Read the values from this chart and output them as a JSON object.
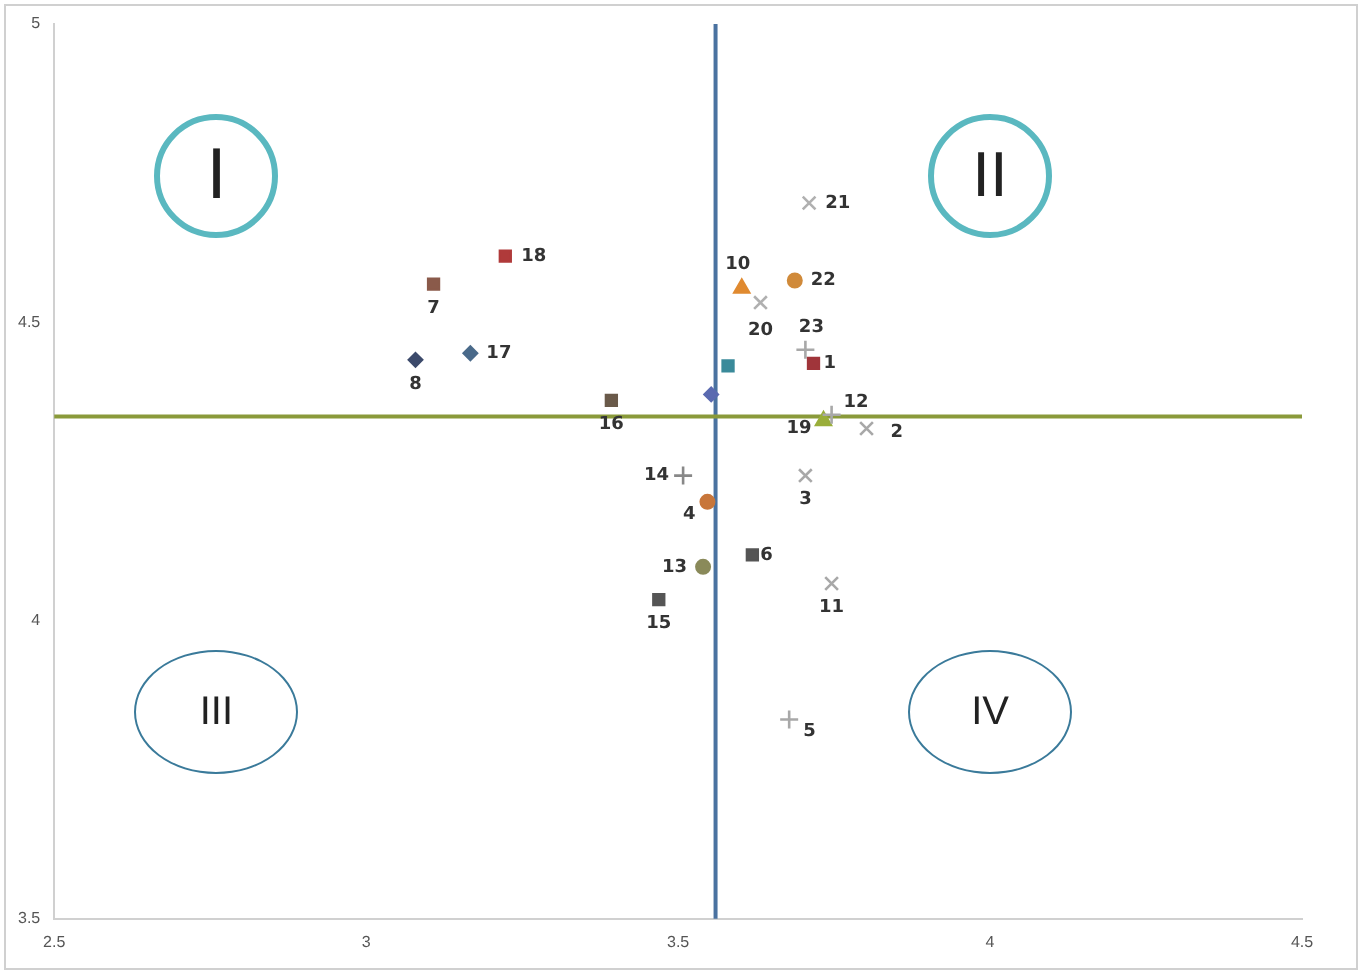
{
  "chart_data": {
    "type": "scatter",
    "xlim": [
      2.5,
      4.5
    ],
    "xticks": [
      2.5,
      3,
      3.5,
      4,
      4.5
    ],
    "ylim": [
      3.5,
      5
    ],
    "yticks": [
      3.5,
      4,
      4.5,
      5
    ],
    "grid": false,
    "series": [
      {
        "name": "1",
        "color": "#a0353a",
        "marker": "square",
        "x": [
          3.717
        ],
        "values": [
          4.431
        ]
      },
      {
        "name": "2",
        "color": "#a8a8a8",
        "marker": "x",
        "x": [
          3.802
        ],
        "values": [
          4.322
        ]
      },
      {
        "name": "3",
        "color": "#a8a8a8",
        "marker": "x",
        "x": [
          3.704
        ],
        "values": [
          4.243
        ]
      },
      {
        "name": "4",
        "color": "#c8763a",
        "marker": "circle",
        "x": [
          3.547
        ],
        "values": [
          4.199
        ]
      },
      {
        "name": "5",
        "color": "#a8a8a8",
        "marker": "cross",
        "x": [
          3.678
        ],
        "values": [
          3.834
        ]
      },
      {
        "name": "6",
        "color": "#555555",
        "marker": "square",
        "x": [
          3.619
        ],
        "values": [
          4.11
        ]
      },
      {
        "name": "7",
        "color": "#8a5a4a",
        "marker": "square",
        "x": [
          3.108
        ],
        "values": [
          4.564
        ]
      },
      {
        "name": "8",
        "color": "#3c4a6b",
        "marker": "diamond",
        "x": [
          3.079
        ],
        "values": [
          4.437
        ]
      },
      {
        "color": "#5a6ab0",
        "marker": "diamond",
        "x": [
          3.553
        ],
        "values": [
          4.379
        ]
      },
      {
        "name": "10",
        "color": "#e08a30",
        "marker": "triangle",
        "x": [
          3.602
        ],
        "values": [
          4.557
        ]
      },
      {
        "name": "11",
        "color": "#a8a8a8",
        "marker": "x",
        "x": [
          3.746
        ],
        "values": [
          4.062
        ]
      },
      {
        "name": "12",
        "color": "#a8a8a8",
        "marker": "cross",
        "x": [
          3.746
        ],
        "values": [
          4.345
        ]
      },
      {
        "name": "13",
        "color": "#8a8a5a",
        "marker": "circle",
        "x": [
          3.54
        ],
        "values": [
          4.09
        ]
      },
      {
        "name": "14",
        "color": "#888888",
        "marker": "cross",
        "x": [
          3.508
        ],
        "values": [
          4.243
        ]
      },
      {
        "name": "15",
        "color": "#555555",
        "marker": "square",
        "x": [
          3.469
        ],
        "values": [
          4.035
        ]
      },
      {
        "name": "16",
        "color": "#6a5a4a",
        "marker": "square",
        "x": [
          3.393
        ],
        "values": [
          4.369
        ]
      },
      {
        "name": "17",
        "color": "#4a6a8a",
        "marker": "diamond",
        "x": [
          3.167
        ],
        "values": [
          4.448
        ]
      },
      {
        "name": "18",
        "color": "#b03a3a",
        "marker": "square",
        "x": [
          3.223
        ],
        "values": [
          4.611
        ]
      },
      {
        "name": "19",
        "color": "#9aae3a",
        "marker": "triangle",
        "x": [
          3.733
        ],
        "values": [
          4.335
        ]
      },
      {
        "name": "20",
        "color": "#b0b0b0",
        "marker": "x",
        "x": [
          3.632
        ],
        "values": [
          4.533
        ]
      },
      {
        "name": "21",
        "color": "#b0b0b0",
        "marker": "x",
        "x": [
          3.71
        ],
        "values": [
          4.7
        ]
      },
      {
        "name": "22",
        "color": "#d08a3a",
        "marker": "circle",
        "x": [
          3.687
        ],
        "values": [
          4.57
        ]
      },
      {
        "name": "23",
        "color": "#a8a8a8",
        "marker": "cross",
        "x": [
          3.704
        ],
        "values": [
          4.454
        ]
      },
      {
        "color": "#3a8a9a",
        "marker": "square",
        "x": [
          3.58
        ],
        "values": [
          4.427
        ]
      }
    ],
    "ref_lines": [
      {
        "axis": "x",
        "value": 3.56,
        "color": "#4a72a0"
      },
      {
        "axis": "y",
        "value": 4.342,
        "color": "#8a9a3a"
      }
    ],
    "annotations": [
      "I",
      "II",
      "III",
      "IV"
    ]
  }
}
